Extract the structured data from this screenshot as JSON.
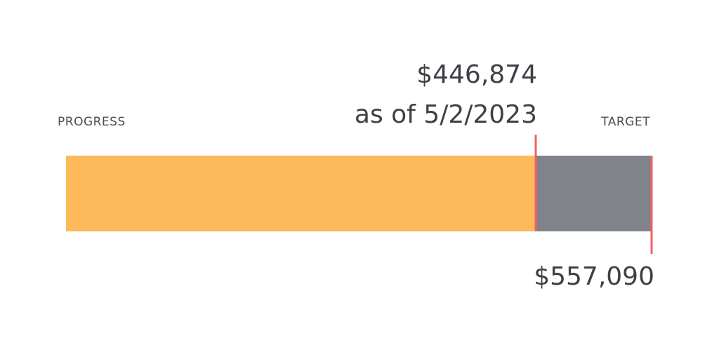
{
  "chart_data": {
    "type": "progress",
    "progress_label": "PROGRESS",
    "target_label": "TARGET",
    "value": 446874,
    "value_label": "$446,874",
    "date_note": "as of 5/2/2023",
    "target": 557090,
    "target_value_label": "$557,090",
    "color": "#fdb95a",
    "remainder_color": "#808389",
    "marker_color": "#f0606a"
  }
}
